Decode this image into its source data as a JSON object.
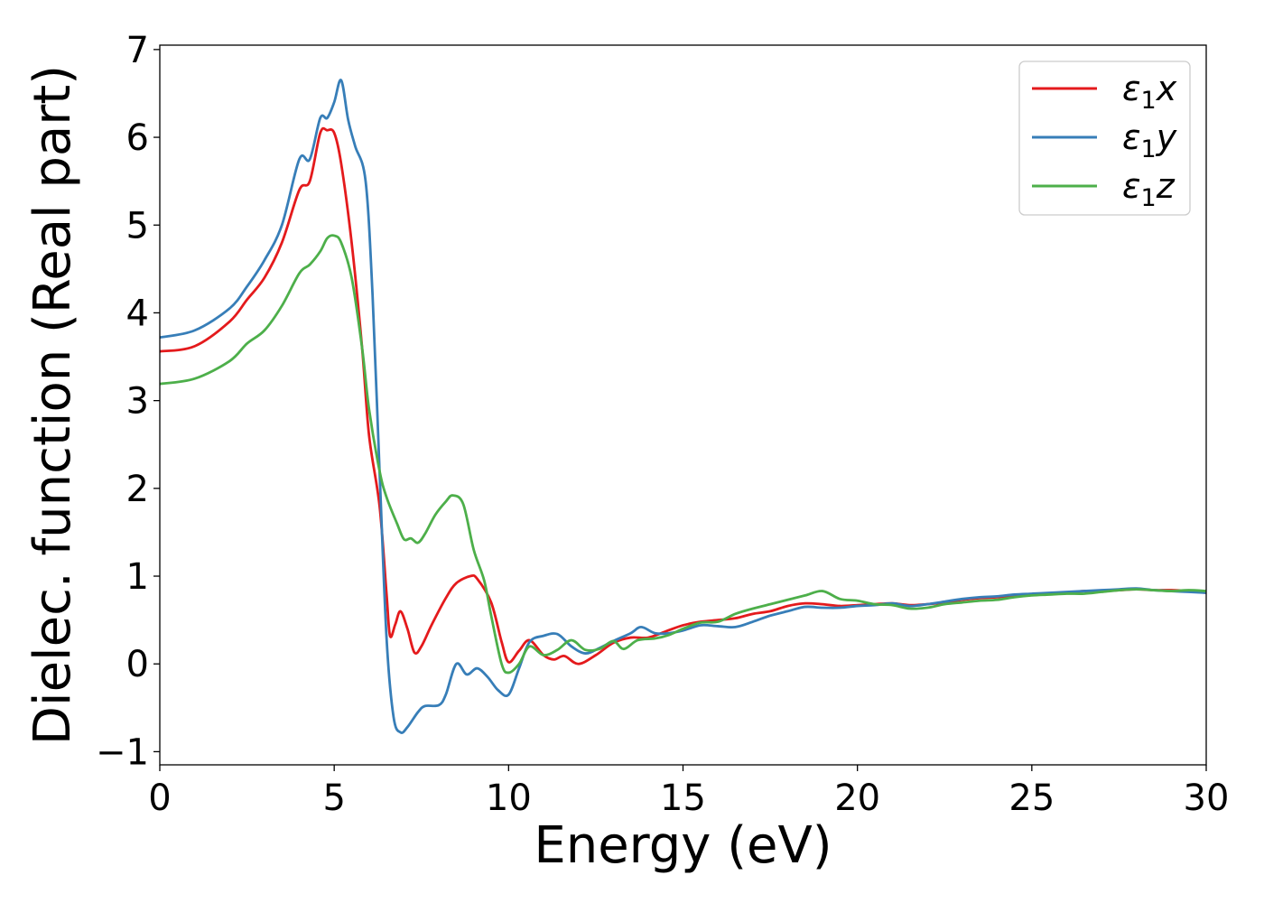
{
  "chart_data": {
    "type": "line",
    "xlabel": "Energy (eV)",
    "ylabel": "Dielec. function (Real part)",
    "xlim": [
      0,
      30
    ],
    "ylim": [
      -1.15,
      7.05
    ],
    "xticks": [
      0,
      5,
      10,
      15,
      20,
      25,
      30
    ],
    "xtick_labels": [
      "0",
      "5",
      "10",
      "15",
      "20",
      "25",
      "30"
    ],
    "yticks": [
      -1,
      0,
      1,
      2,
      3,
      4,
      5,
      6,
      7
    ],
    "ytick_labels": [
      "−1",
      "0",
      "1",
      "2",
      "3",
      "4",
      "5",
      "6",
      "7"
    ],
    "grid": false,
    "legend_position": "top-right",
    "series": [
      {
        "name": "ε₁x",
        "legend_base": "ε",
        "legend_sub": "1",
        "legend_var": "x",
        "color": "#e41a1c",
        "points": [
          [
            0,
            3.56
          ],
          [
            1,
            3.62
          ],
          [
            2,
            3.9
          ],
          [
            2.5,
            4.15
          ],
          [
            3,
            4.4
          ],
          [
            3.5,
            4.8
          ],
          [
            4,
            5.4
          ],
          [
            4.3,
            5.5
          ],
          [
            4.6,
            6.05
          ],
          [
            4.8,
            6.08
          ],
          [
            5.0,
            6.05
          ],
          [
            5.2,
            5.7
          ],
          [
            5.5,
            4.8
          ],
          [
            5.8,
            3.6
          ],
          [
            6.0,
            2.6
          ],
          [
            6.3,
            1.8
          ],
          [
            6.5,
            0.8
          ],
          [
            6.6,
            0.32
          ],
          [
            6.75,
            0.45
          ],
          [
            6.9,
            0.6
          ],
          [
            7.1,
            0.4
          ],
          [
            7.3,
            0.13
          ],
          [
            7.5,
            0.2
          ],
          [
            7.8,
            0.45
          ],
          [
            8.2,
            0.75
          ],
          [
            8.5,
            0.92
          ],
          [
            8.9,
            1.0
          ],
          [
            9.1,
            0.97
          ],
          [
            9.5,
            0.7
          ],
          [
            9.8,
            0.25
          ],
          [
            10.0,
            0.02
          ],
          [
            10.3,
            0.15
          ],
          [
            10.6,
            0.27
          ],
          [
            11.0,
            0.1
          ],
          [
            11.3,
            0.05
          ],
          [
            11.6,
            0.09
          ],
          [
            12.0,
            0.0
          ],
          [
            12.5,
            0.1
          ],
          [
            13.0,
            0.24
          ],
          [
            13.5,
            0.3
          ],
          [
            14.0,
            0.3
          ],
          [
            14.5,
            0.37
          ],
          [
            15.0,
            0.44
          ],
          [
            15.5,
            0.48
          ],
          [
            16.0,
            0.5
          ],
          [
            16.5,
            0.52
          ],
          [
            17.0,
            0.57
          ],
          [
            17.5,
            0.6
          ],
          [
            18.0,
            0.66
          ],
          [
            18.5,
            0.69
          ],
          [
            19.0,
            0.68
          ],
          [
            19.5,
            0.66
          ],
          [
            20.0,
            0.67
          ],
          [
            20.5,
            0.68
          ],
          [
            21.0,
            0.69
          ],
          [
            21.5,
            0.67
          ],
          [
            22.0,
            0.68
          ],
          [
            22.5,
            0.7
          ],
          [
            23.0,
            0.73
          ],
          [
            23.5,
            0.75
          ],
          [
            24.0,
            0.76
          ],
          [
            24.5,
            0.78
          ],
          [
            25.0,
            0.79
          ],
          [
            25.5,
            0.8
          ],
          [
            26.0,
            0.81
          ],
          [
            26.5,
            0.83
          ],
          [
            27.0,
            0.83
          ],
          [
            27.5,
            0.84
          ],
          [
            28.0,
            0.85
          ],
          [
            28.5,
            0.84
          ],
          [
            29.0,
            0.84
          ],
          [
            29.5,
            0.83
          ],
          [
            30.0,
            0.81
          ]
        ]
      },
      {
        "name": "ε₁y",
        "legend_base": "ε",
        "legend_sub": "1",
        "legend_var": "y",
        "color": "#377eb8",
        "points": [
          [
            0,
            3.72
          ],
          [
            1,
            3.8
          ],
          [
            2,
            4.05
          ],
          [
            2.5,
            4.3
          ],
          [
            3,
            4.6
          ],
          [
            3.5,
            5.0
          ],
          [
            4,
            5.75
          ],
          [
            4.3,
            5.75
          ],
          [
            4.6,
            6.22
          ],
          [
            4.8,
            6.22
          ],
          [
            5.0,
            6.4
          ],
          [
            5.2,
            6.65
          ],
          [
            5.4,
            6.2
          ],
          [
            5.6,
            5.9
          ],
          [
            5.9,
            5.5
          ],
          [
            6.1,
            4.2
          ],
          [
            6.3,
            2.2
          ],
          [
            6.5,
            0.3
          ],
          [
            6.7,
            -0.6
          ],
          [
            6.9,
            -0.78
          ],
          [
            7.1,
            -0.72
          ],
          [
            7.4,
            -0.55
          ],
          [
            7.6,
            -0.48
          ],
          [
            8.0,
            -0.47
          ],
          [
            8.2,
            -0.35
          ],
          [
            8.5,
            0.0
          ],
          [
            8.8,
            -0.12
          ],
          [
            9.1,
            -0.05
          ],
          [
            9.4,
            -0.15
          ],
          [
            9.7,
            -0.3
          ],
          [
            10.0,
            -0.35
          ],
          [
            10.3,
            -0.05
          ],
          [
            10.6,
            0.25
          ],
          [
            11.0,
            0.32
          ],
          [
            11.4,
            0.34
          ],
          [
            11.8,
            0.2
          ],
          [
            12.2,
            0.12
          ],
          [
            12.6,
            0.18
          ],
          [
            13.0,
            0.26
          ],
          [
            13.5,
            0.35
          ],
          [
            13.8,
            0.42
          ],
          [
            14.2,
            0.35
          ],
          [
            14.6,
            0.35
          ],
          [
            15.0,
            0.38
          ],
          [
            15.5,
            0.44
          ],
          [
            16.0,
            0.43
          ],
          [
            16.5,
            0.42
          ],
          [
            17.0,
            0.48
          ],
          [
            17.5,
            0.55
          ],
          [
            18.0,
            0.6
          ],
          [
            18.5,
            0.65
          ],
          [
            19.0,
            0.64
          ],
          [
            19.5,
            0.64
          ],
          [
            20.0,
            0.66
          ],
          [
            20.5,
            0.67
          ],
          [
            21.0,
            0.69
          ],
          [
            21.5,
            0.66
          ],
          [
            22.0,
            0.68
          ],
          [
            22.5,
            0.71
          ],
          [
            23.0,
            0.74
          ],
          [
            23.5,
            0.76
          ],
          [
            24.0,
            0.77
          ],
          [
            24.5,
            0.79
          ],
          [
            25.0,
            0.8
          ],
          [
            25.5,
            0.81
          ],
          [
            26.0,
            0.82
          ],
          [
            26.5,
            0.83
          ],
          [
            27.0,
            0.84
          ],
          [
            27.5,
            0.85
          ],
          [
            28.0,
            0.86
          ],
          [
            28.5,
            0.84
          ],
          [
            29.0,
            0.83
          ],
          [
            29.5,
            0.82
          ],
          [
            30.0,
            0.81
          ]
        ]
      },
      {
        "name": "ε₁z",
        "legend_base": "ε",
        "legend_sub": "1",
        "legend_var": "z",
        "color": "#4daf4a",
        "points": [
          [
            0,
            3.19
          ],
          [
            1,
            3.25
          ],
          [
            2,
            3.45
          ],
          [
            2.5,
            3.65
          ],
          [
            3,
            3.8
          ],
          [
            3.5,
            4.08
          ],
          [
            4,
            4.45
          ],
          [
            4.3,
            4.55
          ],
          [
            4.6,
            4.7
          ],
          [
            4.8,
            4.85
          ],
          [
            5.0,
            4.88
          ],
          [
            5.2,
            4.8
          ],
          [
            5.5,
            4.4
          ],
          [
            5.8,
            3.6
          ],
          [
            6.0,
            2.9
          ],
          [
            6.3,
            2.2
          ],
          [
            6.5,
            1.9
          ],
          [
            6.8,
            1.6
          ],
          [
            7.0,
            1.42
          ],
          [
            7.2,
            1.43
          ],
          [
            7.4,
            1.38
          ],
          [
            7.6,
            1.48
          ],
          [
            7.9,
            1.7
          ],
          [
            8.2,
            1.85
          ],
          [
            8.4,
            1.92
          ],
          [
            8.7,
            1.82
          ],
          [
            9.0,
            1.3
          ],
          [
            9.3,
            0.95
          ],
          [
            9.5,
            0.55
          ],
          [
            9.8,
            0.0
          ],
          [
            10.0,
            -0.1
          ],
          [
            10.3,
            0.0
          ],
          [
            10.6,
            0.2
          ],
          [
            11.0,
            0.1
          ],
          [
            11.4,
            0.16
          ],
          [
            11.8,
            0.27
          ],
          [
            12.2,
            0.16
          ],
          [
            12.6,
            0.17
          ],
          [
            13.0,
            0.26
          ],
          [
            13.3,
            0.17
          ],
          [
            13.7,
            0.27
          ],
          [
            14.2,
            0.29
          ],
          [
            14.6,
            0.33
          ],
          [
            15.0,
            0.4
          ],
          [
            15.5,
            0.47
          ],
          [
            16.0,
            0.48
          ],
          [
            16.5,
            0.57
          ],
          [
            17.0,
            0.63
          ],
          [
            17.5,
            0.68
          ],
          [
            18.0,
            0.73
          ],
          [
            18.5,
            0.78
          ],
          [
            19.0,
            0.83
          ],
          [
            19.5,
            0.74
          ],
          [
            20.0,
            0.72
          ],
          [
            20.5,
            0.68
          ],
          [
            21.0,
            0.67
          ],
          [
            21.5,
            0.63
          ],
          [
            22.0,
            0.64
          ],
          [
            22.5,
            0.68
          ],
          [
            23.0,
            0.7
          ],
          [
            23.5,
            0.72
          ],
          [
            24.0,
            0.73
          ],
          [
            24.5,
            0.76
          ],
          [
            25.0,
            0.78
          ],
          [
            25.5,
            0.79
          ],
          [
            26.0,
            0.8
          ],
          [
            26.5,
            0.8
          ],
          [
            27.0,
            0.82
          ],
          [
            27.5,
            0.84
          ],
          [
            28.0,
            0.85
          ],
          [
            28.5,
            0.84
          ],
          [
            29.0,
            0.83
          ],
          [
            29.5,
            0.84
          ],
          [
            30.0,
            0.83
          ]
        ]
      }
    ]
  }
}
